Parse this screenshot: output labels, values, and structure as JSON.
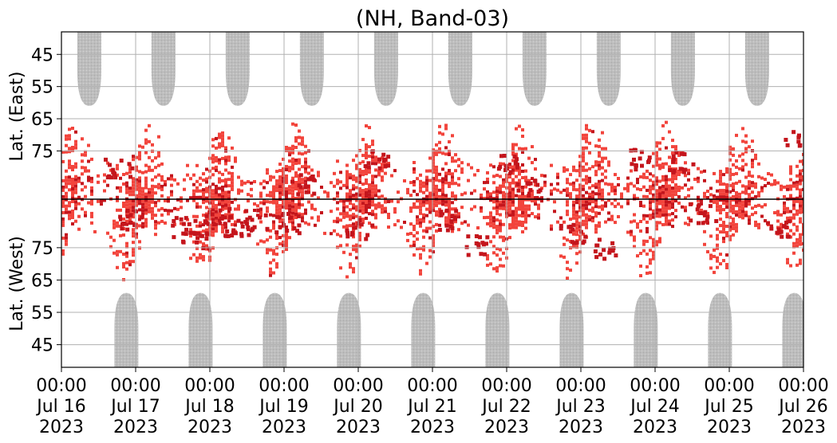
{
  "chart_data": {
    "type": "heatmap",
    "title": "(NH, Band-03)",
    "ylabel_top": "Lat. (East)",
    "ylabel_bottom": "Lat. (West)",
    "x_range": [
      "2023-07-16 00:00",
      "2023-07-26 00:00"
    ],
    "x_ticks": [
      {
        "date": "2023-07-16",
        "l1": "00:00",
        "l2": "Jul 16",
        "l3": "2023"
      },
      {
        "date": "2023-07-17",
        "l1": "00:00",
        "l2": "Jul 17",
        "l3": "2023"
      },
      {
        "date": "2023-07-18",
        "l1": "00:00",
        "l2": "Jul 18",
        "l3": "2023"
      },
      {
        "date": "2023-07-19",
        "l1": "00:00",
        "l2": "Jul 19",
        "l3": "2023"
      },
      {
        "date": "2023-07-20",
        "l1": "00:00",
        "l2": "Jul 20",
        "l3": "2023"
      },
      {
        "date": "2023-07-21",
        "l1": "00:00",
        "l2": "Jul 21",
        "l3": "2023"
      },
      {
        "date": "2023-07-22",
        "l1": "00:00",
        "l2": "Jul 22",
        "l3": "2023"
      },
      {
        "date": "2023-07-23",
        "l1": "00:00",
        "l2": "Jul 23",
        "l3": "2023"
      },
      {
        "date": "2023-07-24",
        "l1": "00:00",
        "l2": "Jul 24",
        "l3": "2023"
      },
      {
        "date": "2023-07-25",
        "l1": "00:00",
        "l2": "Jul 25",
        "l3": "2023"
      },
      {
        "date": "2023-07-26",
        "l1": "00:00",
        "l2": "Jul 26",
        "l3": "2023"
      }
    ],
    "y_ticks_top": [
      45,
      55,
      65,
      75
    ],
    "y_ticks_bottom": [
      75,
      65,
      55,
      45
    ],
    "y_range_top": [
      38,
      90
    ],
    "y_range_bottom": [
      90,
      38
    ],
    "grid": true,
    "colors": {
      "high": "#c4151c",
      "low": "#f2443c",
      "no_data": "#bdbdbd",
      "divider": "#000000"
    },
    "no_data_shapes": {
      "top_centers": [
        "2023-07-16 09:00",
        "2023-07-17 09:00",
        "2023-07-18 09:00",
        "2023-07-19 09:00",
        "2023-07-20 09:00",
        "2023-07-21 09:00",
        "2023-07-22 09:00",
        "2023-07-23 09:00",
        "2023-07-24 09:00",
        "2023-07-25 09:00"
      ],
      "top_reach_lat": 61,
      "bottom_centers": [
        "2023-07-16 21:00",
        "2023-07-17 21:00",
        "2023-07-18 21:00",
        "2023-07-19 21:00",
        "2023-07-20 21:00",
        "2023-07-21 21:00",
        "2023-07-22 21:00",
        "2023-07-23 21:00",
        "2023-07-24 21:00",
        "2023-07-25 21:00"
      ],
      "bottom_reach_lat": 61
    },
    "series": [
      {
        "level": "high",
        "cells": [
          [
            "2023-07-16 18:00",
            80,
            "east"
          ],
          [
            "2023-07-16 21:00",
            84,
            "west"
          ],
          [
            "2023-07-17 15:00",
            82,
            "west"
          ],
          [
            "2023-07-17 19:00",
            78,
            "west"
          ],
          [
            "2023-07-18 02:00",
            86,
            "west"
          ],
          [
            "2023-07-18 08:00",
            82,
            "west"
          ],
          [
            "2023-07-18 14:00",
            84,
            "west"
          ],
          [
            "2023-07-19 00:00",
            83,
            "west"
          ],
          [
            "2023-07-19 06:00",
            85,
            "east"
          ],
          [
            "2023-07-20 00:00",
            81,
            "west"
          ],
          [
            "2023-07-20 05:00",
            77,
            "east"
          ],
          [
            "2023-07-21 06:00",
            84,
            "west"
          ],
          [
            "2023-07-21 13:00",
            76,
            "west"
          ],
          [
            "2023-07-22 00:00",
            79,
            "east"
          ],
          [
            "2023-07-22 07:00",
            86,
            "east"
          ],
          [
            "2023-07-22 21:00",
            80,
            "west"
          ],
          [
            "2023-07-23 08:00",
            75,
            "west"
          ],
          [
            "2023-07-23 19:00",
            77,
            "east"
          ],
          [
            "2023-07-24 08:00",
            78,
            "east"
          ],
          [
            "2023-07-24 15:00",
            86,
            "west"
          ],
          [
            "2023-07-25 16:00",
            82,
            "west"
          ],
          [
            "2023-07-25 21:00",
            70,
            "east"
          ]
        ]
      }
    ]
  }
}
